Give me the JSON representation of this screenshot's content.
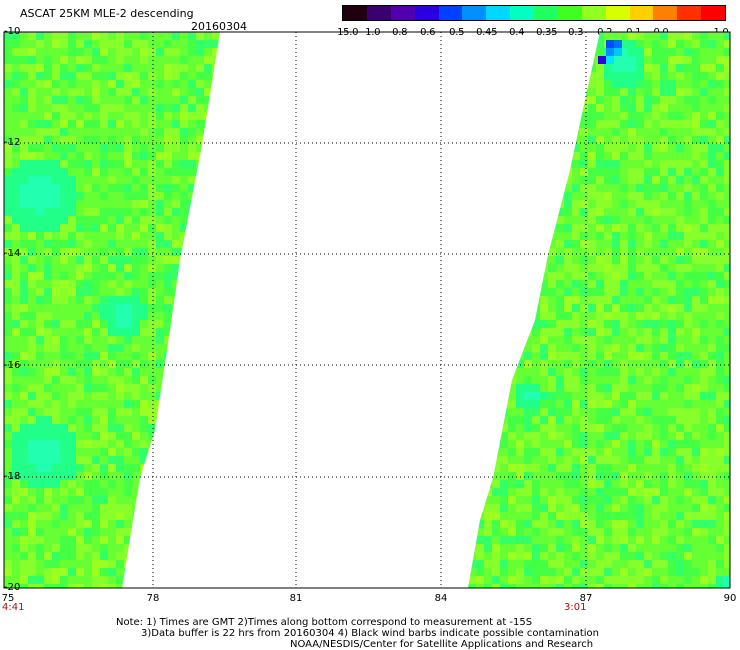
{
  "header": {
    "title": "ASCAT 25KM MLE-2 descending",
    "date": "20160304"
  },
  "colorbar": {
    "colors": [
      "#200010",
      "#3a0070",
      "#5000b0",
      "#2a00e0",
      "#0040ff",
      "#0090ff",
      "#00d8ff",
      "#00ffc0",
      "#20ff60",
      "#40ff20",
      "#90ff20",
      "#d8ff00",
      "#ffd000",
      "#ff8000",
      "#ff3000",
      "#ff0000"
    ],
    "labels": [
      "-15.0",
      "-1.0",
      "-0.8",
      "-0.6",
      "-0.5",
      "-0.45",
      "-0.4",
      "-0.35",
      "-0.3",
      "-0.2",
      "-0.1",
      "0.0",
      "1.0"
    ]
  },
  "map": {
    "y_ticks": [
      "-10",
      "-12",
      "-14",
      "-16",
      "-18",
      "-20"
    ],
    "x_ticks": [
      "75",
      "78",
      "81",
      "84",
      "87",
      "90"
    ],
    "lat_range": [
      -10,
      -20
    ],
    "lon_range": [
      75,
      90
    ],
    "grid": true,
    "swath_times": [
      "4:41",
      "3:01"
    ]
  },
  "notes": [
    "Note: 1) Times are GMT 2)Times along bottom correspond to measurement at -15S",
    "3)Data buffer is 22 hrs from 20160304 4) Black wind barbs indicate possible contamination",
    "NOAA/NESDIS/Center for Satellite Applications and Research"
  ]
}
